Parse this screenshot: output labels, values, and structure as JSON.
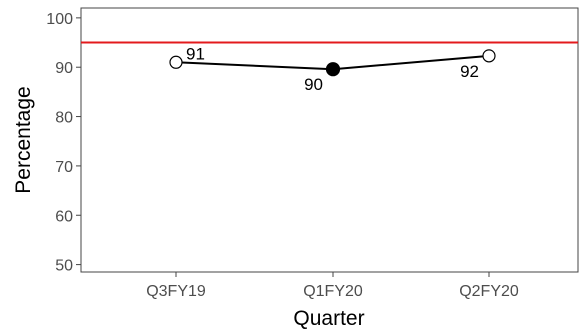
{
  "chart_data": {
    "type": "line",
    "categories": [
      "Q3FY19",
      "Q1FY20",
      "Q2FY20"
    ],
    "series": [
      {
        "values": [
          91,
          89.6,
          92.3
        ],
        "labels": [
          "91",
          "90",
          "92"
        ],
        "markers": [
          "open-circle",
          "filled-circle",
          "open-circle"
        ],
        "color": "#000000"
      }
    ],
    "reference_line": {
      "value": 95,
      "color": "#e31a1c"
    },
    "title": "",
    "xlabel": "Quarter",
    "ylabel": "Percentage",
    "ylim": [
      48.5,
      102
    ],
    "yticks": [
      50,
      60,
      70,
      80,
      90,
      100
    ],
    "grid": false,
    "legend": "none"
  }
}
